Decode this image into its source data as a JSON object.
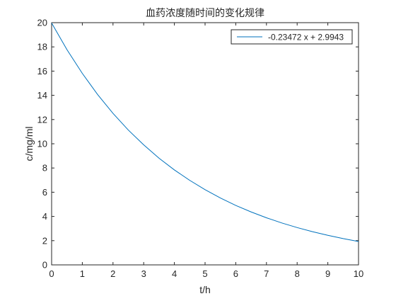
{
  "chart_data": {
    "type": "line",
    "title": "血药浓度随时间的变化规律",
    "xlabel": "t/h",
    "ylabel": "c/mg/ml",
    "xlim": [
      0,
      10
    ],
    "ylim": [
      0,
      20
    ],
    "xticks": [
      0,
      1,
      2,
      3,
      4,
      5,
      6,
      7,
      8,
      9,
      10
    ],
    "yticks": [
      0,
      2,
      4,
      6,
      8,
      10,
      12,
      14,
      16,
      18,
      20
    ],
    "grid": false,
    "legend_position": "top-right",
    "series": [
      {
        "name": "-0.23472 x + 2.9943",
        "color": "#0072BD",
        "x": [
          0,
          0.5,
          1,
          1.5,
          2,
          2.5,
          3,
          3.5,
          4,
          4.5,
          5,
          5.5,
          6,
          6.5,
          7,
          7.5,
          8,
          8.5,
          9,
          9.5,
          10
        ],
        "y": [
          19.97,
          17.77,
          15.81,
          14.06,
          12.51,
          11.13,
          9.91,
          8.81,
          7.84,
          6.98,
          6.21,
          5.52,
          4.91,
          4.37,
          3.89,
          3.46,
          3.08,
          2.74,
          2.44,
          2.17,
          1.93
        ]
      }
    ]
  }
}
